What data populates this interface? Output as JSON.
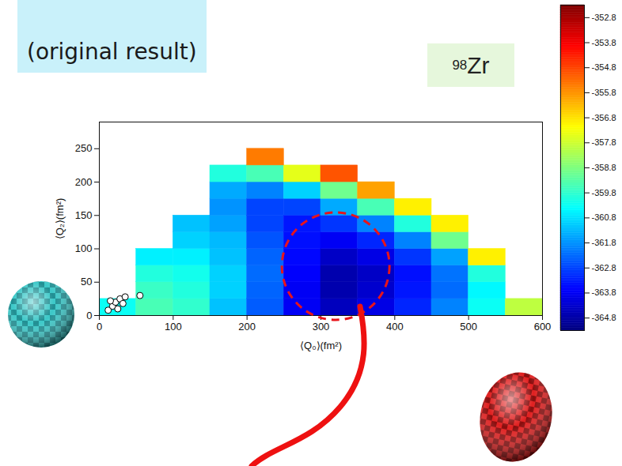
{
  "chart_data": {
    "type": "heatmap",
    "title": "(original result)",
    "nucleus": {
      "mass": "98",
      "symbol": "Zr"
    },
    "x_label": "⟨Q₀⟩(fm²)",
    "y_label": "⟨Q₂⟩(fm²)",
    "xlim": [
      0,
      600
    ],
    "xticks": [
      0,
      100,
      200,
      300,
      400,
      500,
      600
    ],
    "ylim": [
      0,
      290
    ],
    "yticks": [
      0,
      50,
      100,
      150,
      200,
      250
    ],
    "cells": {
      "x_edges": [
        0,
        50,
        100,
        150,
        200,
        250,
        300,
        350,
        400,
        450,
        500,
        550,
        600
      ],
      "y_edges": [
        0,
        25,
        50,
        75,
        100,
        125,
        150,
        175,
        200,
        225,
        250
      ],
      "values": [
        [
          -360.3,
          -359.5,
          -359.8,
          -361.2,
          -362.5,
          -363.8,
          -364.5,
          -364.0,
          -363.2,
          -362.0,
          -360.3,
          -358.0
        ],
        [
          null,
          -359.7,
          -360.0,
          -361.0,
          -362.4,
          -363.8,
          -364.7,
          -364.3,
          -363.4,
          -362.3,
          -360.5,
          null
        ],
        [
          null,
          -360.0,
          -360.2,
          -361.0,
          -362.3,
          -363.7,
          -364.7,
          -364.4,
          -363.5,
          -362.2,
          -360.0,
          null
        ],
        [
          null,
          -360.6,
          -360.6,
          -361.2,
          -362.4,
          -363.6,
          -364.4,
          -364.0,
          -363.0,
          -361.6,
          -357.0,
          null
        ],
        [
          null,
          null,
          -361.0,
          -361.3,
          -362.6,
          -363.5,
          -363.8,
          -363.2,
          -362.0,
          -359.0,
          null,
          null
        ],
        [
          null,
          null,
          -361.2,
          -361.6,
          -362.8,
          -363.4,
          -363.0,
          -362.0,
          -360.0,
          -357.0,
          null,
          null
        ],
        [
          null,
          null,
          null,
          -361.8,
          -362.8,
          -362.8,
          -361.5,
          -359.5,
          -357.0,
          null,
          null,
          null
        ],
        [
          null,
          null,
          null,
          -361.5,
          -362.0,
          -361.0,
          -359.0,
          -356.0,
          null,
          null,
          null,
          null
        ],
        [
          null,
          null,
          null,
          -360.0,
          -359.5,
          -357.5,
          -355.0,
          null,
          null,
          null,
          null,
          null
        ],
        [
          null,
          null,
          null,
          null,
          -355.5,
          null,
          null,
          null,
          null,
          null,
          null,
          null
        ]
      ]
    },
    "colorbar": {
      "range": [
        -365.3,
        -352.3
      ],
      "ticks": [
        -364.8,
        -363.8,
        -362.8,
        -361.8,
        -360.8,
        -359.8,
        -358.8,
        -357.8,
        -356.8,
        -355.8,
        -354.8,
        -353.8,
        -352.8
      ]
    },
    "points": {
      "x": [
        12,
        18,
        22,
        28,
        32,
        15,
        25,
        35,
        55
      ],
      "y": [
        8,
        14,
        20,
        25,
        18,
        22,
        10,
        28,
        30
      ]
    },
    "highlight": {
      "x": 320,
      "y": 74
    }
  }
}
